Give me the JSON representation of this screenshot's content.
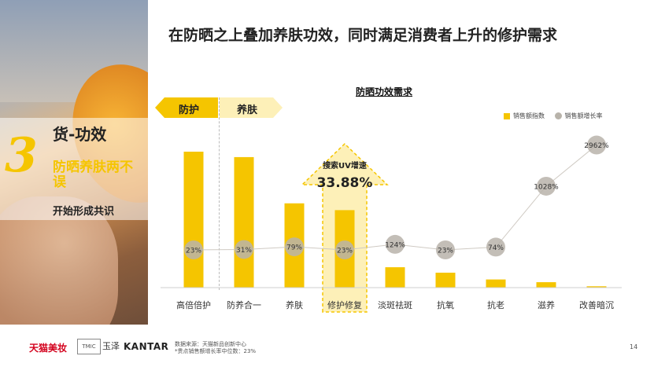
{
  "title": "在防晒之上叠加养肤功效，同时满足消费者上升的修护需求",
  "side": {
    "number": "3",
    "heading": "货-功效",
    "subtitle": "防晒养肤两不误",
    "caption": "开始形成共识"
  },
  "tags": {
    "protect": "防护",
    "skincare": "养肤"
  },
  "callout": {
    "label": "搜索UV增速",
    "value": "33.88%"
  },
  "colors": {
    "bar": "#f5c500",
    "marker": "#b8b3aa",
    "highlight": "#fdf0b8"
  },
  "chart_data": {
    "type": "bar",
    "title": "防晒功效需求",
    "categories": [
      "高倍倍护",
      "防养合一",
      "养肤",
      "修护修复",
      "淡斑祛斑",
      "抗氧",
      "抗老",
      "滋养",
      "改善暗沉"
    ],
    "series": [
      {
        "name": "销售额指数",
        "type": "bar",
        "values": [
          100,
          96,
          62,
          57,
          15,
          11,
          6,
          4,
          1
        ]
      },
      {
        "name": "销售额增长率",
        "type": "line",
        "values": [
          23,
          31,
          79,
          23,
          124,
          23,
          74,
          1028,
          2962
        ],
        "labels": [
          "23%",
          "31%",
          "79%",
          "23%",
          "124%",
          "23%",
          "74%",
          "1028%",
          "2962%"
        ]
      }
    ],
    "highlight_category": "修护修复",
    "legend_position": "top-right"
  },
  "footer": {
    "logo1": "天猫美妆",
    "logo2": "TMIC",
    "logo3": "玉泽",
    "logo4": "KANTAR",
    "source_line1": "数据来源：天猫新品创新中心",
    "source_line2": "*贵点销售额增长率中位数：23%",
    "page": "14"
  }
}
